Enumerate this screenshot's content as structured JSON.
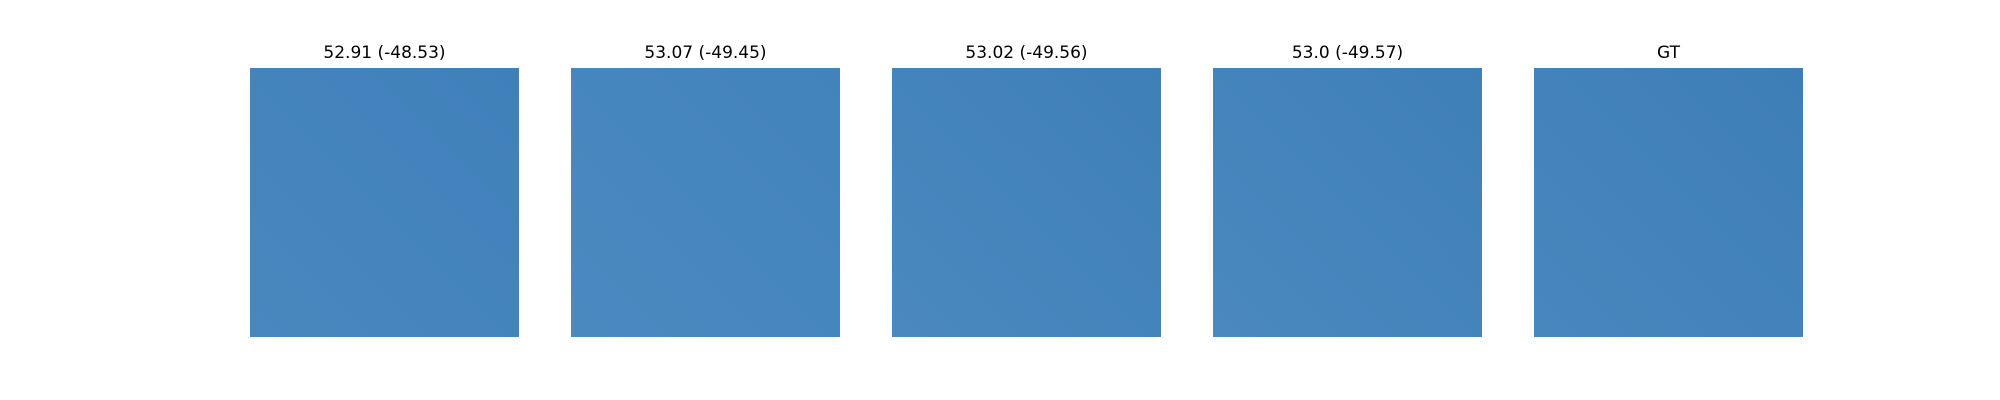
{
  "panels": [
    {
      "title": "52.91 (-48.53)",
      "gradient": {
        "light": "#4987bf",
        "dark": "#4080ba"
      }
    },
    {
      "title": "53.07 (-49.45)",
      "gradient": {
        "light": "#4a89c0",
        "dark": "#4383bc"
      }
    },
    {
      "title": "53.02 (-49.56)",
      "gradient": {
        "light": "#4a88bf",
        "dark": "#3f7fb8"
      }
    },
    {
      "title": "53.0 (-49.57)",
      "gradient": {
        "light": "#4a88bf",
        "dark": "#3f7fb8"
      }
    },
    {
      "title": "GT",
      "gradient": {
        "light": "#4886be",
        "dark": "#3e7eb7"
      }
    }
  ]
}
